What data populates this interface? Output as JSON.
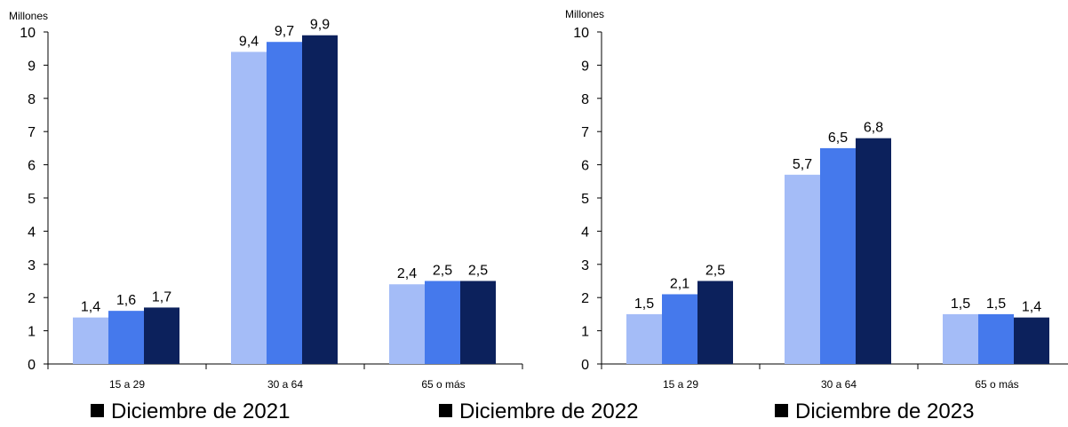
{
  "legend": {
    "items": [
      {
        "label": "Diciembre de 2021",
        "color": "#a4bcf7"
      },
      {
        "label": "Diciembre de 2022",
        "color": "#4579ec"
      },
      {
        "label": "Diciembre de 2023",
        "color": "#0c215c"
      }
    ]
  },
  "chart_data": [
    {
      "type": "bar",
      "unit_label": "Millones",
      "categories": [
        "15 a 29",
        "30 a 64",
        "65 o más"
      ],
      "ylim": [
        0,
        10
      ],
      "yticks": [
        "0",
        "1",
        "2",
        "3",
        "4",
        "5",
        "6",
        "7",
        "8",
        "9",
        "10"
      ],
      "series": [
        {
          "name": "Diciembre de 2021",
          "values": [
            1.4,
            9.4,
            2.4
          ],
          "labels": [
            "1,4",
            "9,4",
            "2,4"
          ]
        },
        {
          "name": "Diciembre de 2022",
          "values": [
            1.6,
            9.7,
            2.5
          ],
          "labels": [
            "1,6",
            "9,7",
            "2,5"
          ]
        },
        {
          "name": "Diciembre de 2023",
          "values": [
            1.7,
            9.9,
            2.5
          ],
          "labels": [
            "1,7",
            "9,9",
            "2,5"
          ]
        }
      ],
      "grid": false
    },
    {
      "type": "bar",
      "unit_label": "Millones",
      "categories": [
        "15 a 29",
        "30 a 64",
        "65 o más"
      ],
      "ylim": [
        0,
        10
      ],
      "yticks": [
        "0",
        "1",
        "2",
        "3",
        "4",
        "5",
        "6",
        "7",
        "8",
        "9",
        "10"
      ],
      "series": [
        {
          "name": "Diciembre de 2021",
          "values": [
            1.5,
            5.7,
            1.5
          ],
          "labels": [
            "1,5",
            "5,7",
            "1,5"
          ]
        },
        {
          "name": "Diciembre de 2022",
          "values": [
            2.1,
            6.5,
            1.5
          ],
          "labels": [
            "2,1",
            "6,5",
            "1,5"
          ]
        },
        {
          "name": "Diciembre de 2023",
          "values": [
            2.5,
            6.8,
            1.4
          ],
          "labels": [
            "2,5",
            "6,8",
            "1,4"
          ]
        }
      ],
      "grid": false
    }
  ]
}
